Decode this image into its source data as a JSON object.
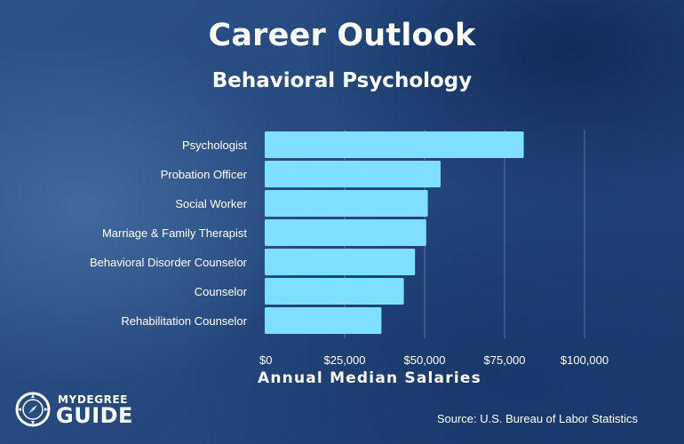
{
  "title": "Career Outlook",
  "subtitle": "Behavioral Psychology",
  "source": "Source: U.S. Bureau of Labor Statistics",
  "logo": {
    "line1": "MYDEGREE",
    "line2": "GUIDE"
  },
  "colors": {
    "bar": "#7fdfff",
    "grid": "#8aa5cc",
    "text": "#ffffff"
  },
  "chart_data": {
    "type": "bar",
    "orientation": "horizontal",
    "categories": [
      "Psychologist",
      "Probation Officer",
      "Social Worker",
      "Marriage & Family Therapist",
      "Behavioral Disorder Counselor",
      "Counselor",
      "Rehabilitation Counselor"
    ],
    "values": [
      81000,
      55000,
      51000,
      50500,
      47000,
      43500,
      36500
    ],
    "xlabel": "Annual Median Salaries",
    "xlim": [
      0,
      100000
    ],
    "xticks": [
      0,
      25000,
      50000,
      75000,
      100000
    ],
    "xtick_labels": [
      "$0",
      "$25,000",
      "$50,000",
      "$75,000",
      "$100,000"
    ],
    "grid": true
  }
}
